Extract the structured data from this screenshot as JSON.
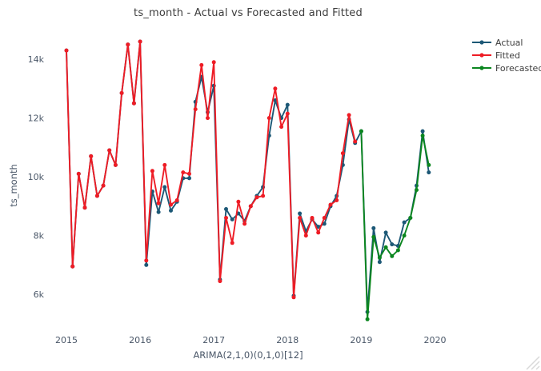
{
  "figure": {
    "title": "ts_month - Actual vs Forecasted and Fitted",
    "x_axis": {
      "title": "ARIMA(2,1,0)(0,1,0)[12]",
      "tick_labels": [
        "2015",
        "2016",
        "2017",
        "2018",
        "2019",
        "2020"
      ]
    },
    "y_axis": {
      "title": "ts_month",
      "tick_labels": [
        "6k",
        "8k",
        "10k",
        "12k",
        "14k"
      ],
      "tick_values": [
        6000,
        8000,
        10000,
        12000,
        14000
      ]
    },
    "legend": {
      "position": "top-right-outside",
      "items": [
        {
          "label": "Actual",
          "color": "#1c5876"
        },
        {
          "label": "Fitted",
          "color": "#ee1c25"
        },
        {
          "label": "Forecasted",
          "color": "#0b861f"
        }
      ]
    },
    "icons": {
      "corner": "resize-grip-icon"
    }
  },
  "chart_data": {
    "type": "line",
    "title": "ts_month - Actual vs Forecasted and Fitted",
    "xlabel": "ARIMA(2,1,0)(0,1,0)[12]",
    "ylabel": "ts_month",
    "x_tick_labels": [
      "2015",
      "2016",
      "2017",
      "2018",
      "2019",
      "2020"
    ],
    "x_tick_month_index": [
      0,
      12,
      24,
      36,
      48,
      60
    ],
    "y_tick_values": [
      6000,
      8000,
      10000,
      12000,
      14000
    ],
    "y_tick_labels": [
      "6k",
      "8k",
      "10k",
      "12k",
      "14k"
    ],
    "ylim": [
      4800,
      14950
    ],
    "grid": false,
    "legend_position": "top-right-outside",
    "frequency": "monthly",
    "series": [
      {
        "name": "Actual",
        "color": "#1c5876",
        "start_month": "2015-01",
        "start_index": 0,
        "values": [
          14300,
          6950,
          10100,
          8950,
          10700,
          9350,
          9700,
          10900,
          10400,
          12850,
          14500,
          12500,
          14600,
          7000,
          9500,
          8800,
          9650,
          8850,
          9150,
          9950,
          9950,
          12550,
          13400,
          12200,
          13100,
          6500,
          8900,
          8550,
          8750,
          8500,
          9000,
          9350,
          9650,
          11400,
          12600,
          12000,
          12450,
          5950,
          8750,
          8150,
          8550,
          8300,
          8400,
          9000,
          9350,
          10400,
          11950,
          11150,
          11550,
          5400,
          8250,
          7100,
          8100,
          7700,
          7650,
          8450,
          8600,
          9700,
          11550,
          10150
        ]
      },
      {
        "name": "Fitted",
        "color": "#ee1c25",
        "start_month": "2015-01",
        "start_index": 0,
        "values": [
          14300,
          6950,
          10100,
          8950,
          10700,
          9350,
          9700,
          10900,
          10400,
          12850,
          14500,
          12500,
          14600,
          7150,
          10200,
          9100,
          10400,
          9050,
          9200,
          10150,
          10100,
          12300,
          13800,
          12000,
          13900,
          6450,
          8600,
          7750,
          9150,
          8400,
          9000,
          9300,
          9350,
          12000,
          13000,
          11700,
          12150,
          5900,
          8600,
          8000,
          8600,
          8100,
          8600,
          9050,
          9200,
          10800,
          12100,
          11200
        ]
      },
      {
        "name": "Forecasted",
        "color": "#0b861f",
        "start_month": "2019-01",
        "start_index": 48,
        "values": [
          11550,
          5150,
          7950,
          7250,
          7600,
          7300,
          7500,
          8000,
          8600,
          9550,
          11400,
          10400
        ]
      }
    ]
  }
}
